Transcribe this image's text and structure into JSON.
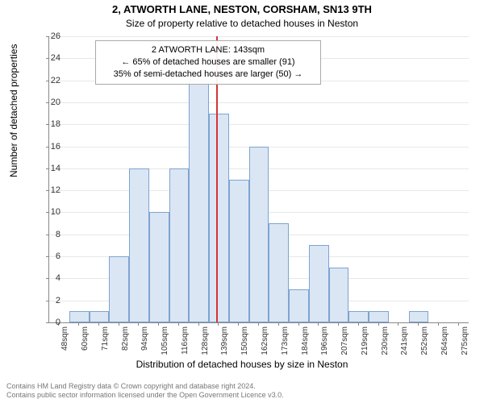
{
  "title_main": "2, ATWORTH LANE, NESTON, CORSHAM, SN13 9TH",
  "title_sub": "Size of property relative to detached houses in Neston",
  "y_label": "Number of detached properties",
  "x_label": "Distribution of detached houses by size in Neston",
  "footer_line1": "Contains HM Land Registry data © Crown copyright and database right 2024.",
  "footer_line2": "Contains public sector information licensed under the Open Government Licence v3.0.",
  "annotation": {
    "line1": "2 ATWORTH LANE: 143sqm",
    "line2": "← 65% of detached houses are smaller (91)",
    "line3": "35% of semi-detached houses are larger (50) →"
  },
  "chart": {
    "type": "histogram",
    "y_max": 26,
    "y_ticks": [
      0,
      2,
      4,
      6,
      8,
      10,
      12,
      14,
      16,
      18,
      20,
      22,
      24,
      26
    ],
    "x_ticks": [
      "48sqm",
      "60sqm",
      "71sqm",
      "82sqm",
      "94sqm",
      "105sqm",
      "116sqm",
      "128sqm",
      "139sqm",
      "150sqm",
      "162sqm",
      "173sqm",
      "184sqm",
      "196sqm",
      "207sqm",
      "219sqm",
      "230sqm",
      "241sqm",
      "252sqm",
      "264sqm",
      "275sqm"
    ],
    "bars": [
      0,
      1,
      1,
      6,
      14,
      10,
      14,
      22,
      19,
      13,
      16,
      9,
      3,
      7,
      5,
      1,
      1,
      0,
      1,
      0,
      0
    ],
    "bar_fill": "#dbe6f4",
    "bar_stroke": "#7da3d1",
    "grid_color": "#e8e8e8",
    "axis_color": "#888888",
    "background": "#ffffff",
    "reference_line_color": "#d43535",
    "reference_line_index": 8.35,
    "bar_count": 21,
    "title_fontsize": 13,
    "subtitle_fontsize": 12,
    "label_fontsize": 12,
    "tick_fontsize": 11,
    "xtick_fontsize": 10,
    "footer_fontsize": 9,
    "annotation_fontsize": 11
  }
}
